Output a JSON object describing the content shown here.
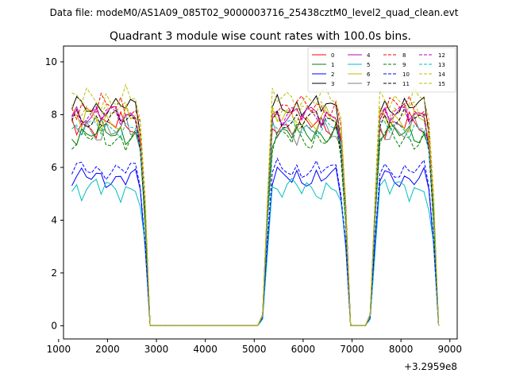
{
  "suptitle": "Data file: modeM0/AS1A09_085T02_9000003716_25438cztM0_level2_quad_clean.evt",
  "chart_data": {
    "type": "line",
    "title": "Quadrant 3 module wise count rates with 100.0s bins.",
    "xlabel": "",
    "ylabel": "",
    "offset_label": "+3.2959e8",
    "xlim": [
      1100,
      9150
    ],
    "ylim": [
      -0.5,
      10.6
    ],
    "xticks": [
      1000,
      2000,
      3000,
      4000,
      5000,
      6000,
      7000,
      8000,
      9000
    ],
    "xtick_labels": [
      "1000",
      "2000",
      "3000",
      "4000",
      "5000",
      "6000",
      "7000",
      "8000",
      "9000"
    ],
    "yticks": [
      0,
      2,
      4,
      6,
      8,
      10
    ],
    "ytick_labels": [
      "0",
      "2",
      "4",
      "6",
      "8",
      "10"
    ],
    "grid": false,
    "legend_position": "top-right",
    "segments": [
      {
        "start": 1270,
        "end": 2770
      },
      {
        "start": 5110,
        "end": 6910
      },
      {
        "start": 7350,
        "end": 8750
      }
    ],
    "series": [
      {
        "name": "0",
        "color": "#ff0000",
        "dash": "solid",
        "level": 7.6,
        "amp": 0.5,
        "phase": 0.3
      },
      {
        "name": "1",
        "color": "#008000",
        "dash": "solid",
        "level": 7.3,
        "amp": 0.5,
        "phase": 1.1
      },
      {
        "name": "2",
        "color": "#0000ff",
        "dash": "solid",
        "level": 5.6,
        "amp": 0.45,
        "phase": 2.0
      },
      {
        "name": "3",
        "color": "#000000",
        "dash": "solid",
        "level": 8.3,
        "amp": 0.45,
        "phase": 2.7
      },
      {
        "name": "4",
        "color": "#c000c0",
        "dash": "solid",
        "level": 8.0,
        "amp": 0.45,
        "phase": 3.5
      },
      {
        "name": "5",
        "color": "#00bfbf",
        "dash": "solid",
        "level": 5.2,
        "amp": 0.5,
        "phase": 4.2
      },
      {
        "name": "6",
        "color": "#bfbf00",
        "dash": "solid",
        "level": 7.8,
        "amp": 0.6,
        "phase": 5.0
      },
      {
        "name": "7",
        "color": "#808080",
        "dash": "solid",
        "level": 7.4,
        "amp": 0.55,
        "phase": 5.7
      },
      {
        "name": "8",
        "color": "#ff0000",
        "dash": "dashed",
        "level": 8.3,
        "amp": 0.5,
        "phase": 0.8
      },
      {
        "name": "9",
        "color": "#008000",
        "dash": "dashed",
        "level": 7.1,
        "amp": 0.55,
        "phase": 1.6
      },
      {
        "name": "10",
        "color": "#0000ff",
        "dash": "dashed",
        "level": 5.9,
        "amp": 0.4,
        "phase": 2.4
      },
      {
        "name": "11",
        "color": "#000000",
        "dash": "dashed",
        "level": 7.8,
        "amp": 0.45,
        "phase": 3.1
      },
      {
        "name": "12",
        "color": "#c000c0",
        "dash": "dashed",
        "level": 8.0,
        "amp": 0.45,
        "phase": 3.9
      },
      {
        "name": "13",
        "color": "#00bfbf",
        "dash": "dashed",
        "level": 7.5,
        "amp": 0.4,
        "phase": 4.6
      },
      {
        "name": "14",
        "color": "#bfbf00",
        "dash": "dashed",
        "level": 8.6,
        "amp": 0.5,
        "phase": 5.3
      },
      {
        "name": "15",
        "color": "#bfbf00",
        "dash": "dashed",
        "level": 8.1,
        "amp": 0.45,
        "phase": 6.0
      }
    ]
  }
}
